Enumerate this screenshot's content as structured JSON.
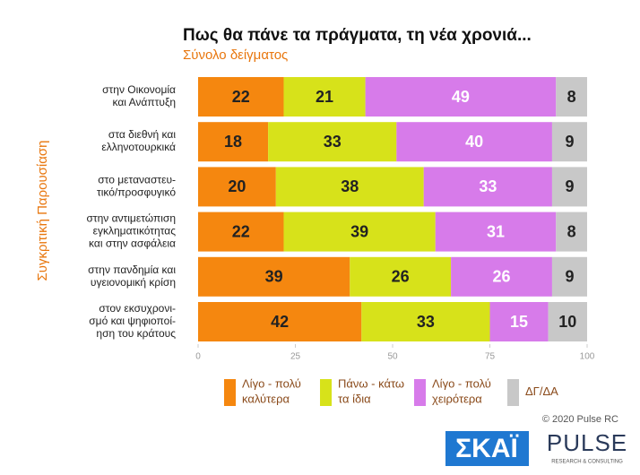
{
  "chart_data": {
    "type": "stacked-barh",
    "title": "Πως θα πάνε τα πράγματα, τη νέα χρονιά...",
    "subtitle": "Σύνολο δείγματος",
    "y_label": "Συγκριτική Παρουσίαση",
    "categories": [
      "στην Οικονομία\nκαι Ανάπτυξη",
      "στα διεθνή και\nελληνοτουρκικά",
      "στο μεταναστευ-\nτικό/προσφυγικό",
      "στην αντιμετώπιση\nεγκληματικότητας\nκαι στην ασφάλεια",
      "στην πανδημία και\nυγειονομική κρίση",
      "στον εκσυχρονι-\nσμό και ψηφιοποί-\nηση του κράτους"
    ],
    "series": [
      {
        "name": "Λίγο - πολύ\nκαλύτερα",
        "color": "#f5870f",
        "values": [
          22,
          18,
          20,
          22,
          39,
          42
        ]
      },
      {
        "name": "Πάνω - κάτω\nτα ίδια",
        "color": "#d7e21a",
        "values": [
          21,
          33,
          38,
          39,
          26,
          33
        ]
      },
      {
        "name": "Λίγο - πολύ\nχειρότερα",
        "color": "#d77bea",
        "values": [
          49,
          40,
          33,
          31,
          26,
          15
        ]
      },
      {
        "name": "ΔΓ/ΔΑ",
        "color": "#c8c8c8",
        "values": [
          8,
          9,
          9,
          8,
          9,
          10
        ]
      }
    ],
    "xlim": [
      0,
      100
    ],
    "xticks": [
      0,
      25,
      50,
      75,
      100
    ],
    "copyright": "© 2020 Pulse RC",
    "logos": {
      "skai": "ΣΚΑΪ",
      "pulse": "PULSE",
      "pulse_tagline": "RESEARCH & CONSULTING"
    }
  }
}
